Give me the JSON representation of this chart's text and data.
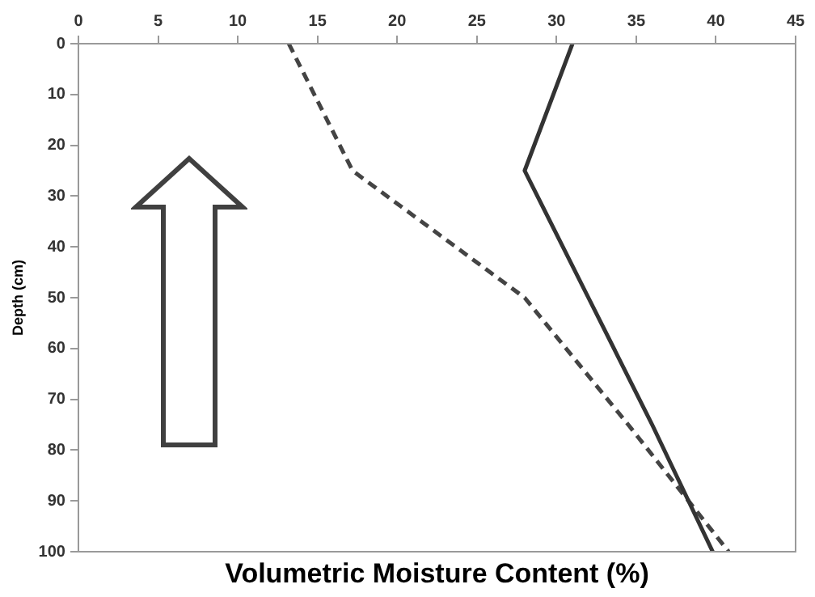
{
  "chart_data": {
    "type": "line",
    "xlabel": "Volumetric Moisture Content (%)",
    "ylabel": "Depth (cm)",
    "series": [
      {
        "color": "#333333",
        "line_style": "solid",
        "x": [
          31,
          28,
          32,
          36,
          39.8
        ],
        "values": [
          0,
          25,
          50,
          75,
          100
        ]
      },
      {
        "color": "#444444",
        "line_style": "dashed",
        "x": [
          13.2,
          17.2,
          28,
          34.5,
          40.8
        ],
        "values": [
          0,
          25,
          50,
          75,
          100
        ]
      }
    ],
    "xlim": [
      0,
      45
    ],
    "xticks": [
      0,
      5,
      10,
      15,
      20,
      25,
      30,
      35,
      40,
      45
    ],
    "ylim": [
      100,
      0
    ],
    "yticks": [
      0,
      10,
      20,
      30,
      40,
      50,
      60,
      70,
      80,
      90,
      100
    ],
    "grid": false,
    "legend": false,
    "marker": "none"
  }
}
